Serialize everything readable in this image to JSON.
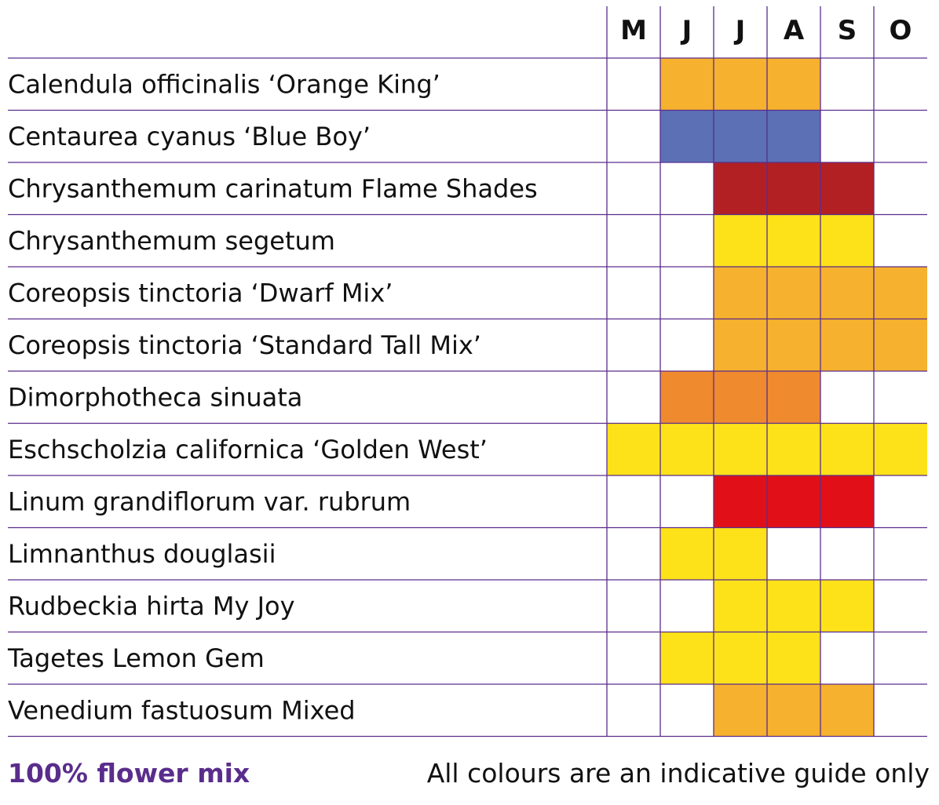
{
  "chart_data": {
    "type": "table",
    "title": "",
    "months": [
      "M",
      "J",
      "J",
      "A",
      "S",
      "O"
    ],
    "rows": [
      {
        "name": "Calendula officinalis ‘Orange King’",
        "color": "#f6b12e",
        "flowering": [
          false,
          true,
          true,
          true,
          false,
          false
        ]
      },
      {
        "name": "Centaurea cyanus ‘Blue Boy’",
        "color": "#5b70b5",
        "flowering": [
          false,
          true,
          true,
          true,
          false,
          false
        ]
      },
      {
        "name": "Chrysanthemum carinatum Flame Shades",
        "color": "#b22024",
        "flowering": [
          false,
          false,
          true,
          true,
          true,
          false
        ]
      },
      {
        "name": "Chrysanthemum segetum",
        "color": "#fde21a",
        "flowering": [
          false,
          false,
          true,
          true,
          true,
          false
        ]
      },
      {
        "name": "Coreopsis tinctoria ‘Dwarf Mix’",
        "color": "#f6b12e",
        "flowering": [
          false,
          false,
          true,
          true,
          true,
          true
        ]
      },
      {
        "name": "Coreopsis tinctoria ‘Standard Tall Mix’",
        "color": "#f6b12e",
        "flowering": [
          false,
          false,
          true,
          true,
          true,
          true
        ]
      },
      {
        "name": "Dimorphotheca sinuata",
        "color": "#ef8a2e",
        "flowering": [
          false,
          true,
          true,
          true,
          false,
          false
        ]
      },
      {
        "name": "Eschscholzia californica ‘Golden West’",
        "color": "#fde21a",
        "flowering": [
          true,
          true,
          true,
          true,
          true,
          true
        ]
      },
      {
        "name": "Linum grandiflorum var. rubrum",
        "color": "#e11018",
        "flowering": [
          false,
          false,
          true,
          true,
          true,
          false
        ]
      },
      {
        "name": "Limnanthus douglasii",
        "color": "#fde21a",
        "flowering": [
          false,
          true,
          true,
          false,
          false,
          false
        ]
      },
      {
        "name": "Rudbeckia hirta My Joy",
        "color": "#fde21a",
        "flowering": [
          false,
          false,
          true,
          true,
          true,
          false
        ]
      },
      {
        "name": "Tagetes Lemon Gem",
        "color": "#fde21a",
        "flowering": [
          false,
          true,
          true,
          true,
          false,
          false
        ]
      },
      {
        "name": "Venedium fastuosum Mixed",
        "color": "#f6b12e",
        "flowering": [
          false,
          false,
          true,
          true,
          true,
          false
        ]
      }
    ],
    "grid_color": "#5a2d8c"
  },
  "footer": {
    "left": "100% flower mix",
    "right": "All colours are an indicative guide only"
  }
}
